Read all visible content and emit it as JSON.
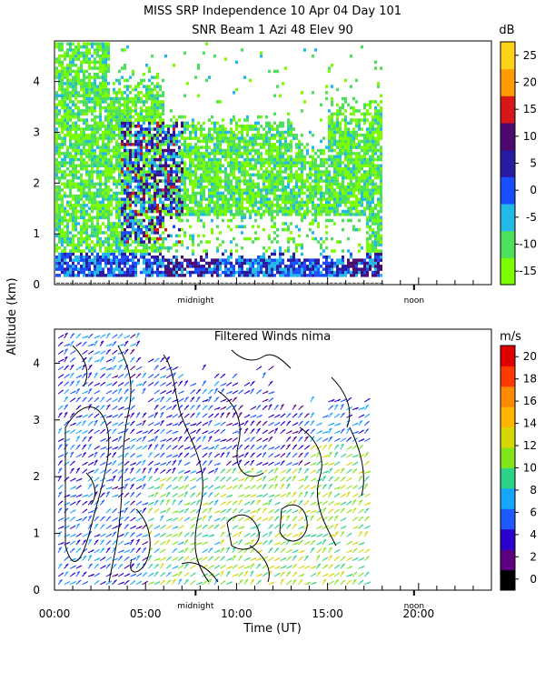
{
  "header": {
    "title_line1": "MISS SRP Independence  10 Apr 04 Day 101",
    "title_line2": "SNR Beam 1 Azi  48 Elev 90"
  },
  "shared_ylabel": "Altitude (km)",
  "colors": {
    "snr_scale": [
      "#7cfc00",
      "#4ce05c",
      "#22b8e8",
      "#1a4dff",
      "#2a1aa0",
      "#4b0a6e",
      "#d81818",
      "#ff9a00",
      "#ffd21a"
    ],
    "wind_scale": [
      "#000000",
      "#5a0080",
      "#2a00cc",
      "#1e5aff",
      "#17a6ff",
      "#2ad28a",
      "#80e61a",
      "#d6d600",
      "#ffb400",
      "#ff8a00",
      "#ff3a00",
      "#e00000"
    ],
    "contour": "#000000"
  },
  "chart_data": [
    {
      "type": "heatmap",
      "title": "SNR Beam 1 Azi  48 Elev 90",
      "ylim": [
        0,
        4.8
      ],
      "yticks": [
        "0",
        "1",
        "2",
        "3",
        "4"
      ],
      "x_markers": [
        {
          "label": "midnight",
          "x": 7.75
        },
        {
          "label": "noon",
          "x": 19.75
        }
      ],
      "colorbar": {
        "unit": "dB",
        "range": [
          -15,
          30
        ],
        "ticks": [
          "25",
          "20",
          "15",
          "10",
          "5",
          "0",
          "-5",
          "-10",
          "-15"
        ]
      },
      "grid": false
    },
    {
      "type": "scatter",
      "title": "Filtered Winds nima",
      "xlabel": "Time (UT)",
      "xlim": [
        0,
        24
      ],
      "xticks": [
        "00:00",
        "05:00",
        "10:00",
        "15:00",
        "20:00"
      ],
      "ylim": [
        0,
        4.6
      ],
      "yticks": [
        "0",
        "1",
        "2",
        "3",
        "4"
      ],
      "x_markers": [
        {
          "label": "midnight",
          "x": 7.75
        },
        {
          "label": "noon",
          "x": 19.75
        }
      ],
      "colorbar": {
        "unit": "m/s",
        "range": [
          0,
          22
        ],
        "ticks": [
          "20",
          "18",
          "16",
          "14",
          "12",
          "10",
          "8",
          "6",
          "4",
          "2",
          "0"
        ]
      },
      "grid": false
    }
  ]
}
